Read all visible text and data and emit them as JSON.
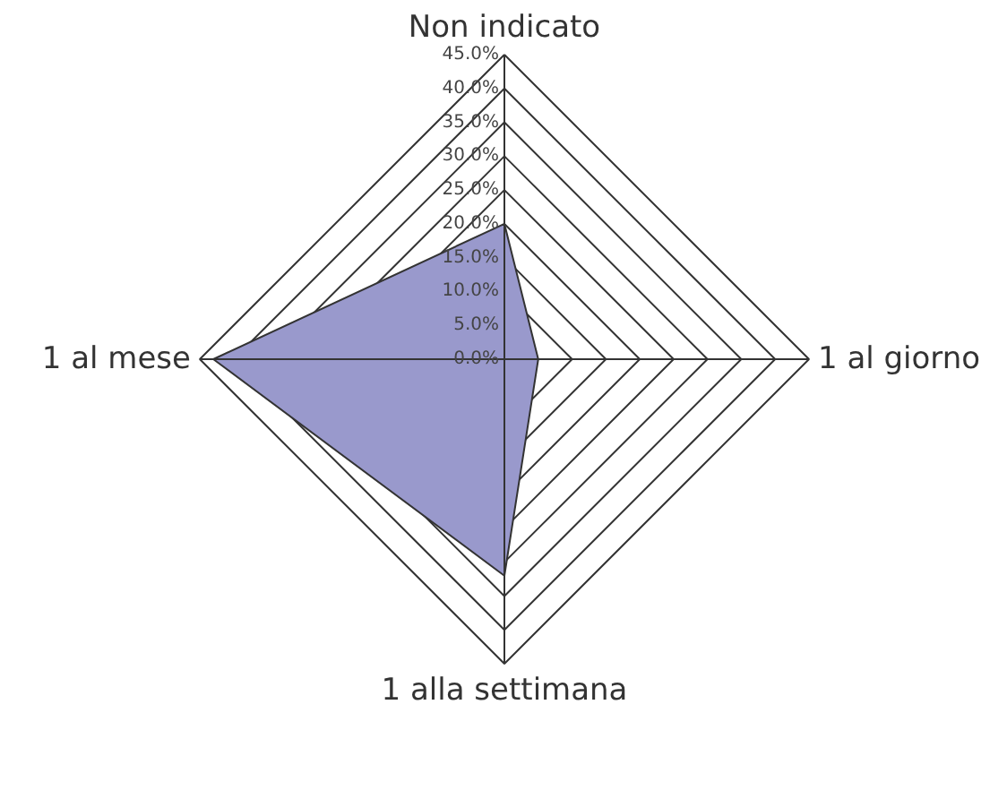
{
  "chart_data": {
    "type": "radar",
    "categories": [
      "Non indicato",
      "1 al giorno",
      "1 alla settimana",
      "1 al mese"
    ],
    "series": [
      {
        "color": "#9999cc",
        "values": [
          20,
          5,
          32,
          43
        ]
      }
    ],
    "ylim": [
      0,
      45
    ],
    "yticks": [
      {
        "value": 0,
        "label": "0.0%"
      },
      {
        "value": 5,
        "label": "5.0%"
      },
      {
        "value": 10,
        "label": "10.0%"
      },
      {
        "value": 15,
        "label": "15.0%"
      },
      {
        "value": 20,
        "label": "20.0%"
      },
      {
        "value": 25,
        "label": "25.0%"
      },
      {
        "value": 30,
        "label": "30.0%"
      },
      {
        "value": 35,
        "label": "35.0%"
      },
      {
        "value": 40,
        "label": "40.0%"
      },
      {
        "value": 45,
        "label": "45.0%"
      }
    ],
    "grid": true
  }
}
